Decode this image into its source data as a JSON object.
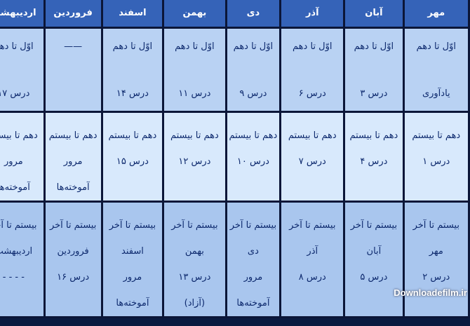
{
  "months": [
    "مهر",
    "آبان",
    "آذر",
    "دی",
    "بهمن",
    "اسفند",
    "فروردین",
    "اردیبهشت"
  ],
  "rows": [
    [
      [
        "اوّل تا دهم",
        "یادآوری"
      ],
      [
        "اوّل تا دهم",
        "درس ۳"
      ],
      [
        "اوّل تا دهم",
        "درس ۶"
      ],
      [
        "اوّل تا دهم",
        "درس ۹"
      ],
      [
        "اوّل تا دهم",
        "درس ۱۱"
      ],
      [
        "اوّل تا دهم",
        "درس ۱۴"
      ],
      [
        "——",
        ""
      ],
      [
        "اوّل تا دهم",
        "درس ۱۷"
      ]
    ],
    [
      [
        "دهم تا بیستم",
        "درس ۱"
      ],
      [
        "دهم تا بیستم",
        "درس ۴"
      ],
      [
        "دهم تا بیستم",
        "درس ۷"
      ],
      [
        "دهم تا بیستم",
        "درس ۱۰"
      ],
      [
        "دهم تا بیستم",
        "درس ۱۲"
      ],
      [
        "دهم تا بیستم",
        "درس ۱۵"
      ],
      [
        "دهم تا بیستم",
        "مرور",
        "آموخته‌ها"
      ],
      [
        "دهم تا بیستم",
        "مرور",
        "آموخته‌ها"
      ]
    ],
    [
      [
        "بیستم تا آخر",
        "مهر",
        "درس ۲"
      ],
      [
        "بیستم تا آخر",
        "آبان",
        "درس ۵"
      ],
      [
        "بیستم تا آخر",
        "آذر",
        "درس ۸"
      ],
      [
        "بیستم تا آخر",
        "دی",
        "مرور",
        "آموخته‌ها"
      ],
      [
        "بیستم تا آخر",
        "بهمن",
        "درس ۱۳",
        "(آزاد)"
      ],
      [
        "بیستم تا آخر",
        "اسفند",
        "مرور",
        "آموخته‌ها"
      ],
      [
        "بیستم تا آخر",
        "فروردین",
        "درس ۱۶"
      ],
      [
        "بیستم تا آخر",
        "اردیبهشت",
        "- - - -"
      ]
    ]
  ],
  "watermark": "Downloadefilm.ir"
}
